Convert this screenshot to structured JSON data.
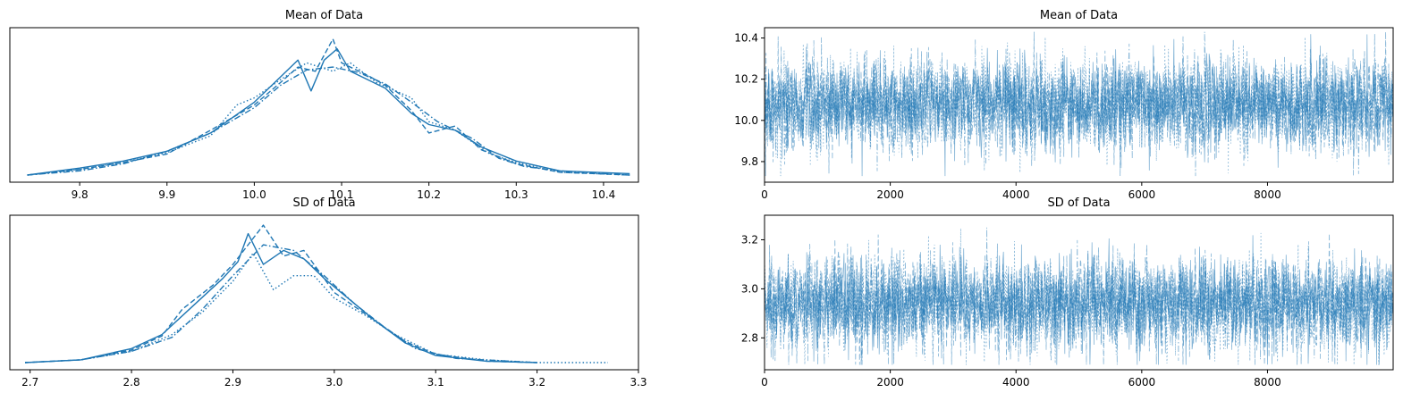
{
  "chart_data": [
    {
      "id": "kde-mean",
      "type": "line",
      "title": "Mean of Data",
      "xlabel": "",
      "ylabel": "",
      "xlim": [
        9.72,
        10.44
      ],
      "xticks": [
        "9.8",
        "9.9",
        "10.0",
        "10.1",
        "10.2",
        "10.3",
        "10.4"
      ],
      "yticks": [],
      "grid": false,
      "color": "#1f77b4",
      "series": [
        {
          "line_style": "solid",
          "x": [
            9.74,
            9.8,
            9.85,
            9.9,
            9.95,
            10.0,
            10.03,
            10.05,
            10.065,
            10.08,
            10.095,
            10.11,
            10.13,
            10.15,
            10.18,
            10.2,
            10.23,
            10.26,
            10.3,
            10.35,
            10.43
          ],
          "y": [
            0.0,
            0.05,
            0.1,
            0.17,
            0.3,
            0.52,
            0.7,
            0.82,
            0.6,
            0.82,
            0.9,
            0.74,
            0.68,
            0.62,
            0.44,
            0.36,
            0.32,
            0.2,
            0.1,
            0.03,
            0.01
          ]
        },
        {
          "line_style": "dashed",
          "x": [
            9.74,
            9.8,
            9.85,
            9.9,
            9.95,
            10.0,
            10.03,
            10.05,
            10.07,
            10.09,
            10.1,
            10.13,
            10.15,
            10.18,
            10.2,
            10.23,
            10.26,
            10.3,
            10.35,
            10.43
          ],
          "y": [
            0.0,
            0.04,
            0.09,
            0.15,
            0.32,
            0.5,
            0.66,
            0.77,
            0.74,
            0.97,
            0.8,
            0.71,
            0.64,
            0.46,
            0.3,
            0.35,
            0.18,
            0.08,
            0.02,
            0.0
          ]
        },
        {
          "line_style": "dotted",
          "x": [
            9.74,
            9.8,
            9.85,
            9.9,
            9.95,
            9.98,
            10.0,
            10.03,
            10.06,
            10.09,
            10.11,
            10.14,
            10.18,
            10.2,
            10.23,
            10.27,
            10.3,
            10.35,
            10.43
          ],
          "y": [
            0.0,
            0.04,
            0.09,
            0.16,
            0.28,
            0.5,
            0.55,
            0.68,
            0.8,
            0.74,
            0.8,
            0.66,
            0.55,
            0.38,
            0.32,
            0.15,
            0.09,
            0.02,
            0.0
          ]
        },
        {
          "line_style": "dashdot",
          "x": [
            9.74,
            9.8,
            9.85,
            9.9,
            9.95,
            10.0,
            10.03,
            10.06,
            10.09,
            10.12,
            10.15,
            10.18,
            10.21,
            10.25,
            10.28,
            10.31,
            10.35,
            10.43
          ],
          "y": [
            0.0,
            0.03,
            0.08,
            0.17,
            0.3,
            0.48,
            0.64,
            0.75,
            0.77,
            0.73,
            0.65,
            0.52,
            0.38,
            0.26,
            0.12,
            0.06,
            0.03,
            0.0
          ]
        }
      ]
    },
    {
      "id": "trace-mean",
      "type": "line",
      "title": "Mean of Data",
      "xlabel": "",
      "ylabel": "",
      "xlim": [
        0,
        9999
      ],
      "ylim": [
        9.7,
        10.45
      ],
      "xticks": [
        "0",
        "2000",
        "4000",
        "6000",
        "8000"
      ],
      "yticks": [
        "9.8",
        "10.0",
        "10.2",
        "10.4"
      ],
      "grid": false,
      "color": "#1f77b4",
      "trace": {
        "draws": 10000,
        "chains": 4,
        "center": 10.08,
        "band_low": 9.9,
        "band_high": 10.26,
        "min": 9.73,
        "max": 10.43
      }
    },
    {
      "id": "kde-sd",
      "type": "line",
      "title": "SD of Data",
      "xlabel": "",
      "ylabel": "",
      "xlim": [
        2.68,
        3.3
      ],
      "xticks": [
        "2.7",
        "2.8",
        "2.9",
        "3.0",
        "3.1",
        "3.2",
        "3.3"
      ],
      "yticks": [],
      "grid": false,
      "color": "#1f77b4",
      "series": [
        {
          "line_style": "solid",
          "x": [
            2.695,
            2.75,
            2.8,
            2.83,
            2.86,
            2.89,
            2.905,
            2.915,
            2.93,
            2.95,
            2.97,
            2.99,
            3.01,
            3.04,
            3.07,
            3.1,
            3.15,
            3.2
          ],
          "y": [
            0.0,
            0.02,
            0.1,
            0.2,
            0.4,
            0.6,
            0.72,
            0.92,
            0.7,
            0.8,
            0.74,
            0.6,
            0.48,
            0.3,
            0.14,
            0.05,
            0.01,
            0.0
          ]
        },
        {
          "line_style": "dashed",
          "x": [
            2.695,
            2.75,
            2.8,
            2.83,
            2.85,
            2.88,
            2.9,
            2.93,
            2.95,
            2.97,
            3.0,
            3.03,
            3.07,
            3.1,
            3.15,
            3.2
          ],
          "y": [
            0.0,
            0.02,
            0.09,
            0.19,
            0.38,
            0.55,
            0.7,
            0.98,
            0.76,
            0.8,
            0.5,
            0.35,
            0.15,
            0.06,
            0.01,
            0.0
          ]
        },
        {
          "line_style": "dotted",
          "x": [
            2.695,
            2.75,
            2.8,
            2.84,
            2.87,
            2.9,
            2.92,
            2.94,
            2.96,
            2.98,
            3.0,
            3.03,
            3.06,
            3.1,
            3.15,
            3.2,
            3.27
          ],
          "y": [
            0.0,
            0.02,
            0.08,
            0.2,
            0.36,
            0.58,
            0.78,
            0.52,
            0.62,
            0.62,
            0.46,
            0.34,
            0.2,
            0.06,
            0.02,
            0.0,
            0.0
          ]
        },
        {
          "line_style": "dashdot",
          "x": [
            2.695,
            2.75,
            2.8,
            2.84,
            2.87,
            2.9,
            2.93,
            2.96,
            2.99,
            3.02,
            3.05,
            3.08,
            3.12,
            3.2
          ],
          "y": [
            0.0,
            0.02,
            0.08,
            0.18,
            0.38,
            0.62,
            0.84,
            0.8,
            0.62,
            0.42,
            0.25,
            0.1,
            0.03,
            0.0
          ]
        }
      ]
    },
    {
      "id": "trace-sd",
      "type": "line",
      "title": "SD of Data",
      "xlabel": "",
      "ylabel": "",
      "xlim": [
        0,
        9999
      ],
      "ylim": [
        2.67,
        3.3
      ],
      "xticks": [
        "0",
        "2000",
        "4000",
        "6000",
        "8000"
      ],
      "yticks": [
        "2.8",
        "3.0",
        "3.2"
      ],
      "grid": false,
      "color": "#1f77b4",
      "trace": {
        "draws": 10000,
        "chains": 4,
        "center": 2.94,
        "band_low": 2.8,
        "band_high": 3.1,
        "min": 2.69,
        "max": 3.27
      }
    }
  ]
}
